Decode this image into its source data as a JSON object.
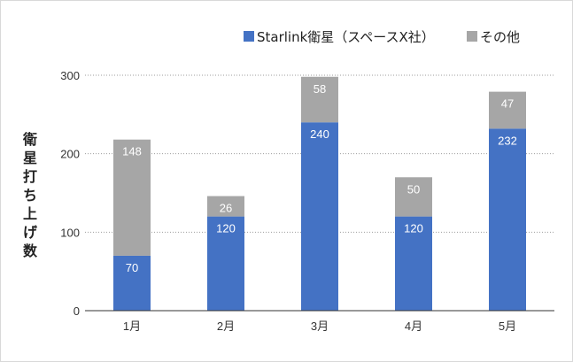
{
  "chart_data": {
    "type": "bar",
    "stacked": true,
    "title": "",
    "xlabel": "",
    "ylabel": "衛星打ち上げ数",
    "ylim": [
      0,
      300
    ],
    "yticks": [
      0,
      100,
      200,
      300
    ],
    "categories": [
      "1月",
      "2月",
      "3月",
      "4月",
      "5月"
    ],
    "series": [
      {
        "name": "Starlink衛星（スペースX社）",
        "color": "#4472c4",
        "values": [
          70,
          120,
          240,
          120,
          232
        ],
        "labels": [
          "70",
          "120",
          "240",
          "120",
          "232"
        ]
      },
      {
        "name": "その他",
        "color": "#a6a6a6",
        "values": [
          148,
          26,
          58,
          50,
          47
        ],
        "labels": [
          "148",
          "26",
          "58",
          "50",
          "47"
        ]
      }
    ],
    "legend_position": "top-right",
    "grid": "horizontal-dotted"
  }
}
